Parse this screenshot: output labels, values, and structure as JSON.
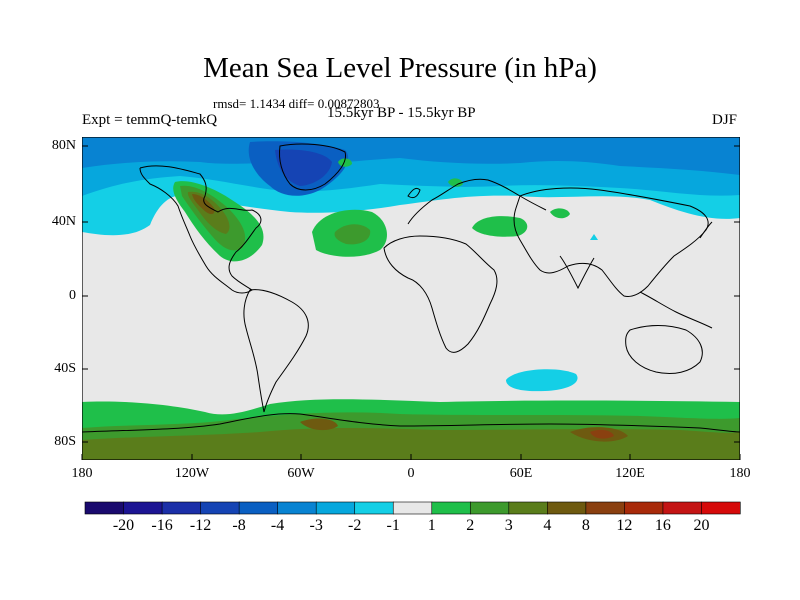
{
  "title": "Mean Sea Level Pressure (in hPa)",
  "stats": "rmsd= 1.1434  diff= 0.00872803",
  "expt": "Expt = temmQ-temkQ",
  "period": "15.5kyr BP - 15.5kyr BP",
  "season": "DJF",
  "lat_labels": [
    "80N",
    "40N",
    "0",
    "40S",
    "80S"
  ],
  "lon_labels": [
    "180",
    "120W",
    "60W",
    "0",
    "60E",
    "120E",
    "180"
  ],
  "colorbar": {
    "labels": [
      "-20",
      "-16",
      "-12",
      "-8",
      "-4",
      "-3",
      "-2",
      "-1",
      "1",
      "2",
      "3",
      "4",
      "8",
      "12",
      "16",
      "20"
    ],
    "colors": [
      "#1a0a6e",
      "#1c1493",
      "#1b2fa8",
      "#1544b4",
      "#0a5fc2",
      "#0883d2",
      "#06a7dd",
      "#14cfe6",
      "#e8e8e8",
      "#1fbf4a",
      "#3d9a2d",
      "#5a7d1b",
      "#6e5a10",
      "#8a4010",
      "#a82a0a",
      "#c41414",
      "#d60a0a"
    ]
  }
}
